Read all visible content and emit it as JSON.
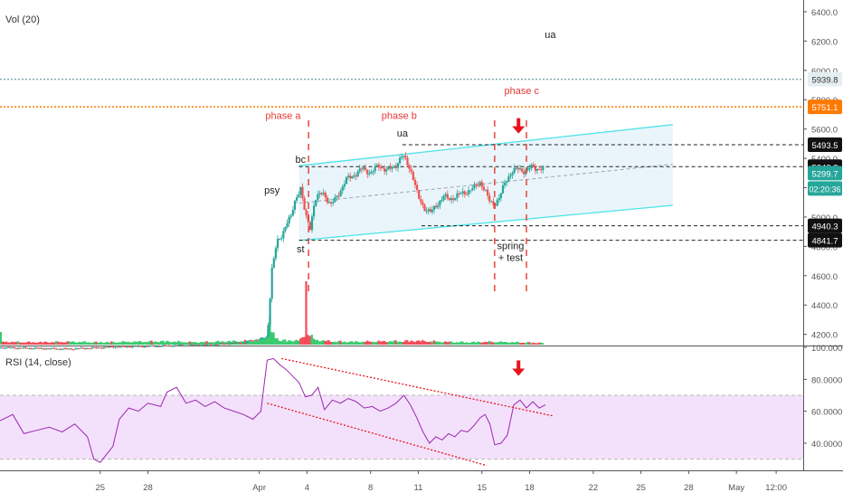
{
  "panes": {
    "vol_label": "Vol (20)",
    "rsi_label": "RSI (14, close)"
  },
  "chart_data": [
    {
      "type": "candlestick",
      "name": "price",
      "y_ticks": [
        4200,
        4400,
        4600,
        4800,
        5000,
        5200,
        5400,
        5600,
        5800,
        6000,
        6200,
        6400
      ],
      "y_tick_labels": [
        "4200.0",
        "4400.0",
        "4600.0",
        "4800.0",
        "5000.0",
        "5200.0",
        "5400.0",
        "5600.0",
        "5800.0",
        "6000.0",
        "6200.0",
        "6400.0"
      ],
      "ylim": [
        4130,
        6480
      ],
      "x_tick_labels": [
        {
          "t": -10,
          "label": "25"
        },
        {
          "t": -7,
          "label": "28"
        },
        {
          "t": 0,
          "label": "Apr"
        },
        {
          "t": 3,
          "label": "4"
        },
        {
          "t": 7,
          "label": "8"
        },
        {
          "t": 10,
          "label": "11"
        },
        {
          "t": 14,
          "label": "15"
        },
        {
          "t": 17,
          "label": "18"
        },
        {
          "t": 21,
          "label": "22"
        },
        {
          "t": 24,
          "label": "25"
        },
        {
          "t": 27,
          "label": "28"
        },
        {
          "t": 30,
          "label": "May"
        },
        {
          "t": 32.5,
          "label": "12:00"
        }
      ],
      "xlim": [
        -16.3,
        34.2
      ],
      "price_path": [
        [
          -16.3,
          4110
        ],
        [
          -12,
          4100
        ],
        [
          -9,
          4115
        ],
        [
          -6.5,
          4120
        ],
        [
          -3,
          4130
        ],
        [
          -1,
          4145
        ],
        [
          0.5,
          4180
        ],
        [
          0.8,
          4650
        ],
        [
          1.1,
          4820
        ],
        [
          1.4,
          4870
        ],
        [
          1.7,
          4960
        ],
        [
          2.0,
          5000
        ],
        [
          2.3,
          5130
        ],
        [
          2.6,
          5200
        ],
        [
          2.9,
          5010
        ],
        [
          3.2,
          4930
        ],
        [
          3.5,
          5120
        ],
        [
          4.0,
          5170
        ],
        [
          4.5,
          5080
        ],
        [
          5.0,
          5160
        ],
        [
          5.5,
          5260
        ],
        [
          6.0,
          5290
        ],
        [
          6.5,
          5330
        ],
        [
          7.0,
          5300
        ],
        [
          7.5,
          5350
        ],
        [
          8.0,
          5320
        ],
        [
          8.5,
          5340
        ],
        [
          9.0,
          5420
        ],
        [
          9.3,
          5370
        ],
        [
          9.6,
          5300
        ],
        [
          10.0,
          5130
        ],
        [
          10.4,
          5060
        ],
        [
          10.8,
          5030
        ],
        [
          11.2,
          5090
        ],
        [
          11.6,
          5140
        ],
        [
          12.0,
          5120
        ],
        [
          12.5,
          5150
        ],
        [
          13.0,
          5170
        ],
        [
          13.5,
          5200
        ],
        [
          13.9,
          5240
        ],
        [
          14.2,
          5180
        ],
        [
          14.5,
          5100
        ],
        [
          14.8,
          5090
        ],
        [
          15.1,
          5130
        ],
        [
          15.5,
          5250
        ],
        [
          15.9,
          5310
        ],
        [
          16.3,
          5330
        ],
        [
          16.7,
          5310
        ],
        [
          17.1,
          5340
        ],
        [
          17.5,
          5330
        ]
      ],
      "volume_path": [
        [
          -16.3,
          0.06
        ],
        [
          -14.2,
          0.05
        ],
        [
          -12,
          0.06
        ],
        [
          -10,
          0.05
        ],
        [
          -8,
          0.06
        ],
        [
          -6,
          0.07
        ],
        [
          -4,
          0.05
        ],
        [
          -2,
          0.07
        ],
        [
          0,
          0.08
        ],
        [
          0.7,
          0.25
        ],
        [
          1.3,
          0.1
        ],
        [
          1.8,
          0.08
        ],
        [
          2.6,
          0.1
        ],
        [
          3.0,
          0.26
        ],
        [
          3.5,
          0.1
        ],
        [
          4.5,
          0.07
        ],
        [
          6,
          0.06
        ],
        [
          8,
          0.07
        ],
        [
          10,
          0.08
        ],
        [
          11.5,
          0.06
        ],
        [
          13.2,
          0.05
        ],
        [
          14.6,
          0.06
        ],
        [
          16,
          0.05
        ],
        [
          17.5,
          0.04
        ]
      ],
      "volume_spikes": [
        {
          "t": 3.0,
          "v": 1.0
        },
        {
          "t": 0.7,
          "v": 0.45
        },
        {
          "t": -16.2,
          "v": 0.2
        }
      ],
      "horizontal_levels": [
        {
          "value": 5939.8,
          "label": "5939.8",
          "style": "dotted",
          "color": "#7fa9ad",
          "tag_color": "#e5eef0",
          "tag_text": "#333333"
        },
        {
          "value": 5751.1,
          "label": "5751.1",
          "style": "dotted",
          "color": "#ff7a00",
          "tag_color": "#ff7a00",
          "tag_text": "#ffffff"
        },
        {
          "value": 5493.5,
          "label": "5493.5",
          "style": "dashed",
          "color": "#222222",
          "tag_color": "#111111",
          "tag_text": "#ffffff"
        },
        {
          "value": 5343.3,
          "label": "5343.3",
          "style": "dashed",
          "color": "#222222",
          "tag_color": "#111111",
          "tag_text": "#ffffff"
        },
        {
          "value": 4940.3,
          "label": "4940.3",
          "style": "dashed",
          "color": "#222222",
          "tag_color": "#111111",
          "tag_text": "#ffffff"
        },
        {
          "value": 4841.7,
          "label": "4841.7",
          "style": "dashed",
          "color": "#222222",
          "tag_color": "#111111",
          "tag_text": "#ffffff"
        }
      ],
      "current_price": {
        "value": 5299.7,
        "label": "5299.7",
        "countdown": "02:20:36",
        "color": "#26a69a"
      },
      "channel": {
        "upper": [
          [
            2.5,
            5350
          ],
          [
            26,
            5630
          ]
        ],
        "lower": [
          [
            2.5,
            4840
          ],
          [
            26,
            5080
          ]
        ],
        "mid": [
          [
            2.5,
            5095
          ],
          [
            26,
            5360
          ]
        ],
        "color": "#4de3e8"
      },
      "vertical_markers": [
        3.1,
        14.8,
        16.8
      ],
      "annotations": [
        {
          "text": "phase a",
          "t": 1.5,
          "v": 5670,
          "color": "#e53935"
        },
        {
          "text": "phase b",
          "t": 8.8,
          "v": 5670,
          "color": "#e53935"
        },
        {
          "text": "phase c",
          "t": 16.5,
          "v": 5840,
          "color": "#e53935"
        },
        {
          "text": "ua",
          "t": 18.3,
          "v": 6220,
          "color": "#222222"
        },
        {
          "text": "ua",
          "t": 9.0,
          "v": 5550,
          "color": "#222222"
        },
        {
          "text": "bc",
          "t": 2.6,
          "v": 5370,
          "color": "#222222"
        },
        {
          "text": "psy",
          "t": 0.8,
          "v": 5160,
          "color": "#222222"
        },
        {
          "text": "st",
          "t": 2.6,
          "v": 4760,
          "color": "#222222"
        },
        {
          "text": "spring",
          "t": 15.8,
          "v": 4780,
          "color": "#222222"
        },
        {
          "text": "+ test",
          "t": 15.8,
          "v": 4700,
          "color": "#222222"
        }
      ],
      "down_arrow": {
        "t": 16.3,
        "v": 5600,
        "color": "#e8141c"
      }
    },
    {
      "type": "line",
      "name": "RSI",
      "y_ticks": [
        40,
        60,
        80,
        100
      ],
      "y_tick_labels": [
        "40.0000",
        "60.0000",
        "80.0000",
        "100.0000"
      ],
      "ylim": [
        23,
        100
      ],
      "band": [
        30,
        70
      ],
      "series": [
        {
          "values": [
            [
              -16.3,
              54
            ],
            [
              -15.5,
              58
            ],
            [
              -14.8,
              46
            ],
            [
              -14,
              48
            ],
            [
              -13.2,
              50
            ],
            [
              -12.4,
              47
            ],
            [
              -11.6,
              52
            ],
            [
              -10.8,
              44
            ],
            [
              -10.4,
              30
            ],
            [
              -10,
              28
            ],
            [
              -9.6,
              33
            ],
            [
              -9.2,
              38
            ],
            [
              -8.8,
              55
            ],
            [
              -8.2,
              62
            ],
            [
              -7.6,
              60
            ],
            [
              -7,
              65
            ],
            [
              -6.2,
              63
            ],
            [
              -5.8,
              72
            ],
            [
              -5.2,
              75
            ],
            [
              -4.6,
              65
            ],
            [
              -4,
              67
            ],
            [
              -3.4,
              63
            ],
            [
              -2.8,
              66
            ],
            [
              -2.2,
              62
            ],
            [
              -1.6,
              60
            ],
            [
              -1,
              58
            ],
            [
              -0.4,
              55
            ],
            [
              0.1,
              60
            ],
            [
              0.5,
              92
            ],
            [
              0.9,
              93
            ],
            [
              1.3,
              89
            ],
            [
              1.7,
              86
            ],
            [
              2.1,
              82
            ],
            [
              2.5,
              78
            ],
            [
              2.9,
              69
            ],
            [
              3.3,
              70
            ],
            [
              3.7,
              75
            ],
            [
              4.1,
              61
            ],
            [
              4.6,
              67
            ],
            [
              5.1,
              65
            ],
            [
              5.6,
              68
            ],
            [
              6.1,
              66
            ],
            [
              6.6,
              62
            ],
            [
              7.1,
              63
            ],
            [
              7.6,
              60
            ],
            [
              8.1,
              62
            ],
            [
              8.6,
              65
            ],
            [
              9.1,
              70
            ],
            [
              9.5,
              64
            ],
            [
              9.9,
              56
            ],
            [
              10.3,
              47
            ],
            [
              10.7,
              40
            ],
            [
              11.1,
              44
            ],
            [
              11.5,
              42
            ],
            [
              11.9,
              46
            ],
            [
              12.3,
              44
            ],
            [
              12.7,
              48
            ],
            [
              13.1,
              47
            ],
            [
              13.5,
              51
            ],
            [
              13.9,
              56
            ],
            [
              14.2,
              58
            ],
            [
              14.5,
              52
            ],
            [
              14.8,
              39
            ],
            [
              15.2,
              40
            ],
            [
              15.6,
              45
            ],
            [
              16.0,
              64
            ],
            [
              16.4,
              67
            ],
            [
              16.8,
              62
            ],
            [
              17.2,
              66
            ],
            [
              17.6,
              62
            ],
            [
              18.0,
              64
            ]
          ],
          "color": "#9c27b0"
        }
      ],
      "trendlines": [
        {
          "from": [
            1.4,
            93
          ],
          "to": [
            18.5,
            57
          ]
        },
        {
          "from": [
            0.5,
            65
          ],
          "to": [
            14.3,
            26
          ]
        }
      ],
      "down_arrow": {
        "t": 16.3,
        "v": 85,
        "color": "#e8141c"
      }
    }
  ],
  "colors": {
    "up": "#26a69a",
    "down": "#ef5350",
    "vol_up": "#22c55e",
    "vol_down": "#f23645",
    "phase_markers": "#e53935",
    "channel_fill": "#dff1f8",
    "rsi_band": "#f3e1fb"
  }
}
